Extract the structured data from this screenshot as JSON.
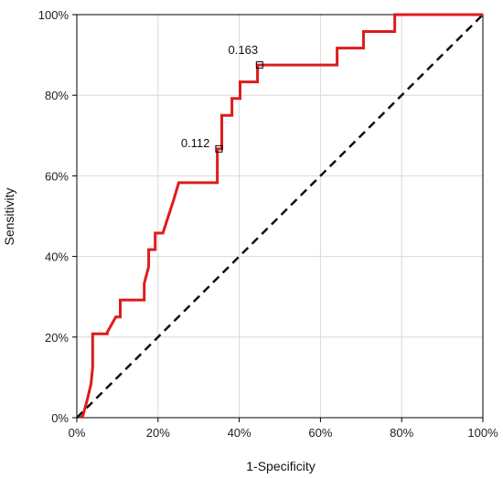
{
  "chart_data": {
    "type": "line",
    "title": "",
    "xlabel": "1-Specificity",
    "ylabel": "Sensitivity",
    "xlim": [
      0,
      100
    ],
    "ylim": [
      0,
      100
    ],
    "x_ticks": [
      "0%",
      "20%",
      "40%",
      "60%",
      "80%",
      "100%"
    ],
    "y_ticks": [
      "0%",
      "20%",
      "40%",
      "60%",
      "80%",
      "100%"
    ],
    "grid": true,
    "line_color": "#dd1c1c",
    "reference_color": "#111111",
    "series": [
      {
        "x": [
          0.9,
          1.5,
          2.5,
          3.5,
          3.9,
          3.9,
          7.5,
          7.5,
          9.6,
          9.6,
          10.7,
          10.7,
          16.6,
          16.6,
          17.7,
          17.7,
          18.6,
          18.6,
          19.3,
          19.3,
          21.2,
          21.2,
          23.9,
          25.1,
          25.1,
          34.6,
          34.6,
          35.7,
          35.7,
          38.2,
          38.2,
          40.2,
          40.2,
          42.9,
          42.9,
          44.5,
          44.5,
          64.1,
          64.1,
          70.6,
          70.6,
          78.3,
          78.3,
          100
        ],
        "y": [
          0.0,
          0.5,
          4.2,
          8.4,
          12.5,
          20.8,
          20.8,
          21.2,
          25.0,
          25.0,
          25.0,
          29.2,
          29.2,
          33.3,
          37.5,
          41.7,
          41.7,
          41.7,
          41.7,
          45.8,
          45.8,
          45.8,
          54.2,
          58.3,
          58.3,
          58.3,
          66.7,
          66.7,
          75.0,
          75.0,
          79.2,
          79.2,
          83.3,
          83.3,
          83.3,
          83.3,
          87.5,
          87.5,
          91.7,
          91.7,
          95.8,
          95.8,
          100,
          100
        ]
      },
      {
        "x": [
          0,
          100
        ],
        "y": [
          0,
          100
        ]
      }
    ],
    "annotations": [
      {
        "label": "0.112",
        "x": 35.0,
        "y": 66.7
      },
      {
        "label": "0.163",
        "x": 45.0,
        "y": 87.5
      }
    ]
  }
}
